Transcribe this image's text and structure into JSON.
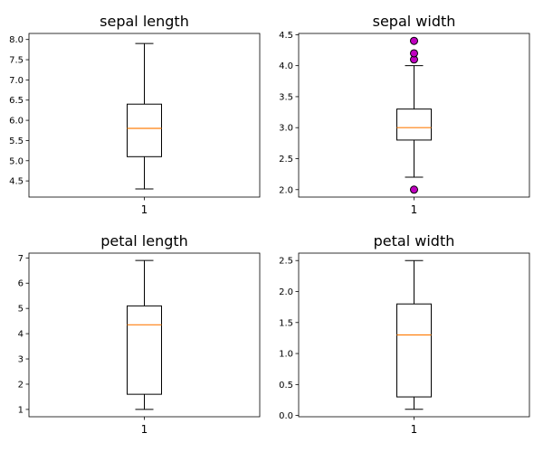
{
  "colors": {
    "median": "#ff7f0e",
    "flier_fill": "#bf00bf",
    "box": "#000000",
    "background": "#ffffff"
  },
  "chart_data": [
    {
      "type": "box",
      "title": "sepal length",
      "categories": [
        "1"
      ],
      "ylim": [
        4.1,
        8.15
      ],
      "yticks": [
        "4.5",
        "5.0",
        "5.5",
        "6.0",
        "6.5",
        "7.0",
        "7.5",
        "8.0"
      ],
      "box": {
        "whisker_low": 4.3,
        "q1": 5.1,
        "median": 5.8,
        "q3": 6.4,
        "whisker_high": 7.9,
        "fliers": []
      }
    },
    {
      "type": "box",
      "title": "sepal width",
      "categories": [
        "1"
      ],
      "ylim": [
        1.88,
        4.52
      ],
      "yticks": [
        "2.0",
        "2.5",
        "3.0",
        "3.5",
        "4.0",
        "4.5"
      ],
      "box": {
        "whisker_low": 2.2,
        "q1": 2.8,
        "median": 3.0,
        "q3": 3.3,
        "whisker_high": 4.0,
        "fliers": [
          4.1,
          4.2,
          4.4,
          2.0
        ]
      }
    },
    {
      "type": "box",
      "title": "petal length",
      "categories": [
        "1"
      ],
      "ylim": [
        0.71,
        7.19
      ],
      "yticks": [
        "1",
        "2",
        "3",
        "4",
        "5",
        "6",
        "7"
      ],
      "box": {
        "whisker_low": 1.0,
        "q1": 1.6,
        "median": 4.35,
        "q3": 5.1,
        "whisker_high": 6.9,
        "fliers": []
      }
    },
    {
      "type": "box",
      "title": "petal width",
      "categories": [
        "1"
      ],
      "ylim": [
        -0.02,
        2.62
      ],
      "yticks": [
        "0.0",
        "0.5",
        "1.0",
        "1.5",
        "2.0",
        "2.5"
      ],
      "box": {
        "whisker_low": 0.1,
        "q1": 0.3,
        "median": 1.3,
        "q3": 1.8,
        "whisker_high": 2.5,
        "fliers": []
      }
    }
  ]
}
